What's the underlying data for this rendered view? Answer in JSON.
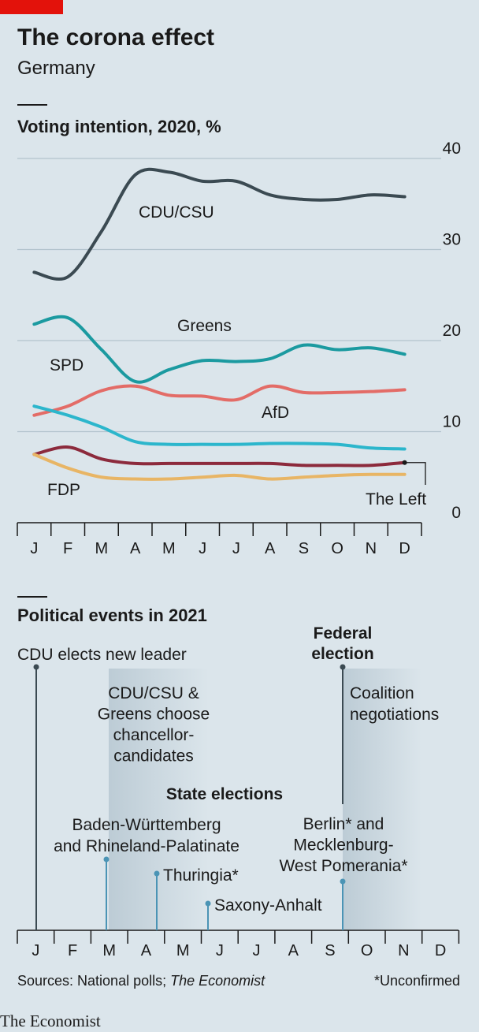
{
  "header": {
    "title": "The corona effect",
    "subtitle": "Germany"
  },
  "chart_data": {
    "type": "line",
    "title": "Voting intention, 2020, %",
    "categories": [
      "J",
      "F",
      "M",
      "A",
      "M",
      "J",
      "J",
      "A",
      "S",
      "O",
      "N",
      "D"
    ],
    "ylim": [
      0,
      40
    ],
    "yticks": [
      0,
      10,
      20,
      30,
      40
    ],
    "grid": true,
    "series": [
      {
        "name": "CDU/CSU",
        "color": "#3b4a52",
        "values": [
          27.5,
          27,
          32,
          38.2,
          38.5,
          37.5,
          37.5,
          36,
          35.5,
          35.5,
          36,
          35.8
        ]
      },
      {
        "name": "Greens",
        "color": "#1b9aa0",
        "values": [
          21.8,
          22.5,
          19,
          15.5,
          16.8,
          17.8,
          17.7,
          18,
          19.5,
          19,
          19.2,
          18.5
        ]
      },
      {
        "name": "SPD",
        "color": "#e36c67",
        "values": [
          11.8,
          12.8,
          14.5,
          15,
          14,
          13.9,
          13.5,
          15,
          14.3,
          14.3,
          14.4,
          14.6
        ]
      },
      {
        "name": "AfD",
        "color": "#2cb6cc",
        "values": [
          12.8,
          11.8,
          10.5,
          8.9,
          8.6,
          8.6,
          8.6,
          8.7,
          8.7,
          8.6,
          8.2,
          8.1
        ]
      },
      {
        "name": "The Left",
        "color": "#8c2a3c",
        "values": [
          7.5,
          8.3,
          7,
          6.5,
          6.5,
          6.5,
          6.5,
          6.5,
          6.3,
          6.3,
          6.3,
          6.6
        ]
      },
      {
        "name": "FDP",
        "color": "#e8b565",
        "values": [
          7.5,
          6,
          5,
          4.8,
          4.8,
          5,
          5.2,
          4.8,
          5,
          5.2,
          5.3,
          5.3
        ]
      }
    ]
  },
  "events_panel": {
    "title": "Political events in 2021",
    "months": [
      "J",
      "F",
      "M",
      "A",
      "M",
      "J",
      "J",
      "A",
      "S",
      "O",
      "N",
      "D"
    ],
    "cdu_leader": "CDU elects new leader",
    "federal_election": [
      "Federal",
      "election"
    ],
    "coalition": [
      "Coalition",
      "negotiations"
    ],
    "chancellor": [
      "CDU/CSU &",
      "Greens choose",
      "chancellor-",
      "candidates"
    ],
    "state_elections": "State elections",
    "bw": [
      "Baden-Württemberg",
      "and Rhineland-Palatinate"
    ],
    "thuringia": "Thuringia*",
    "saxony": "Saxony-Anhalt",
    "berlin": [
      "Berlin* and",
      "Mecklenburg-",
      "West Pomerania*"
    ]
  },
  "footer": {
    "sources": "Sources: National polls; ",
    "sources_italic": "The Economist",
    "note": "*Unconfirmed",
    "brand": "The Economist"
  }
}
